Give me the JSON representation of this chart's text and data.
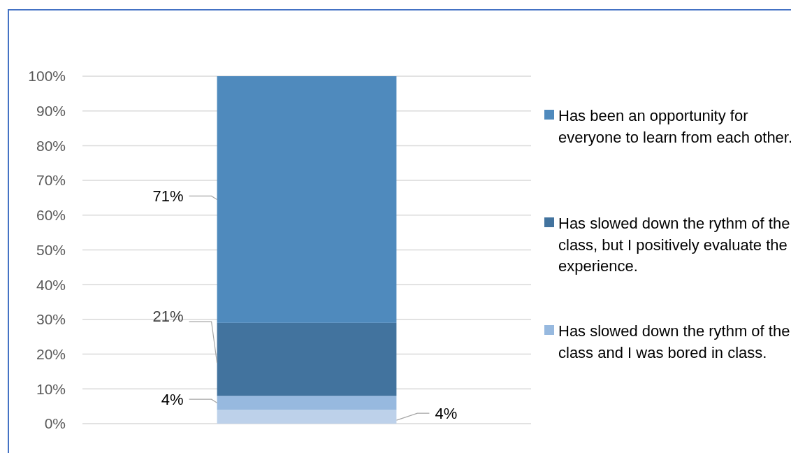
{
  "chart_data": {
    "type": "bar",
    "stacked": true,
    "categories": [
      null
    ],
    "series": [
      {
        "color": "#bdd1ea",
        "values": [
          4
        ],
        "value_labels": [
          "4%"
        ]
      },
      {
        "name": "Has slowed down the rythm of the class and I was bored in class.",
        "color": "#97b9df",
        "values": [
          4
        ],
        "value_labels": [
          "4%"
        ]
      },
      {
        "name": "Has slowed down the rythm of the class, but I positively evaluate the experience.",
        "color": "#42739e",
        "values": [
          21
        ],
        "value_labels": [
          "21%"
        ]
      },
      {
        "name": "Has been an opportunity for everyone to learn from each other.",
        "color": "#4f8abd",
        "values": [
          71
        ],
        "value_labels": [
          "71%"
        ]
      }
    ],
    "ylim": [
      0,
      100
    ],
    "yticks": [
      {
        "value": 0,
        "label": "0%"
      },
      {
        "value": 10,
        "label": "10%"
      },
      {
        "value": 20,
        "label": "20%"
      },
      {
        "value": 30,
        "label": "30%"
      },
      {
        "value": 40,
        "label": "40%"
      },
      {
        "value": 50,
        "label": "50%"
      },
      {
        "value": 60,
        "label": "60%"
      },
      {
        "value": 70,
        "label": "70%"
      },
      {
        "value": 80,
        "label": "80%"
      },
      {
        "value": 90,
        "label": "90%"
      },
      {
        "value": 100,
        "label": "100%"
      }
    ],
    "grid": "y",
    "legend": "right"
  }
}
